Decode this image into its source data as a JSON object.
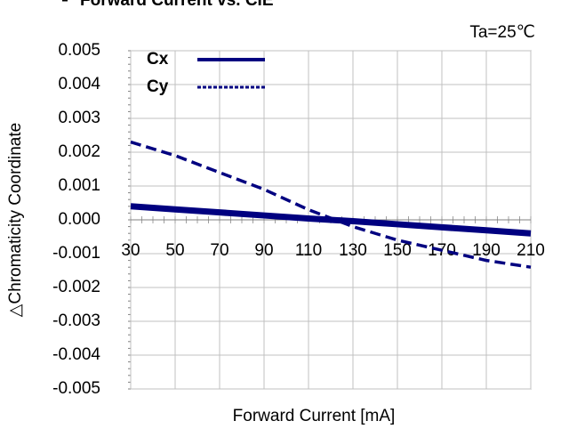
{
  "chart_data": {
    "type": "line",
    "title": "Forward Current vs. CIE",
    "annotation": "Ta=25℃",
    "x_label": "Forward Current [mA]",
    "y_label": "△Chromaticity Coordinate",
    "x": [
      30,
      50,
      70,
      90,
      110,
      130,
      150,
      170,
      190,
      210
    ],
    "series": [
      {
        "name": "Cx",
        "color": "#000080",
        "style": "solid",
        "values": [
          0.0004,
          0.00031,
          0.00022,
          0.00013,
          4e-05,
          -4e-05,
          -0.00013,
          -0.00022,
          -0.00031,
          -0.0004
        ]
      },
      {
        "name": "Cy",
        "color": "#000080",
        "style": "dashed",
        "values": [
          0.0023,
          0.0019,
          0.0014,
          0.0009,
          0.0003,
          -0.0002,
          -0.0006,
          -0.0009,
          -0.0012,
          -0.0014
        ]
      }
    ],
    "xlim": [
      30,
      210
    ],
    "xticks": [
      30,
      50,
      70,
      90,
      110,
      130,
      150,
      170,
      190,
      210
    ],
    "ylim": [
      -0.005,
      0.005
    ],
    "yticks": [
      {
        "value": 0.005,
        "label": "0.005"
      },
      {
        "value": 0.004,
        "label": "0.004"
      },
      {
        "value": 0.003,
        "label": "0.003"
      },
      {
        "value": 0.002,
        "label": "0.002"
      },
      {
        "value": 0.001,
        "label": "0.001"
      },
      {
        "value": 0,
        "label": "0.000"
      },
      {
        "value": -0.001,
        "label": "-0.001"
      },
      {
        "value": -0.002,
        "label": "-0.002"
      },
      {
        "value": -0.003,
        "label": "-0.003"
      },
      {
        "value": -0.004,
        "label": "-0.004"
      },
      {
        "value": -0.005,
        "label": "-0.005"
      }
    ],
    "grid": true
  }
}
